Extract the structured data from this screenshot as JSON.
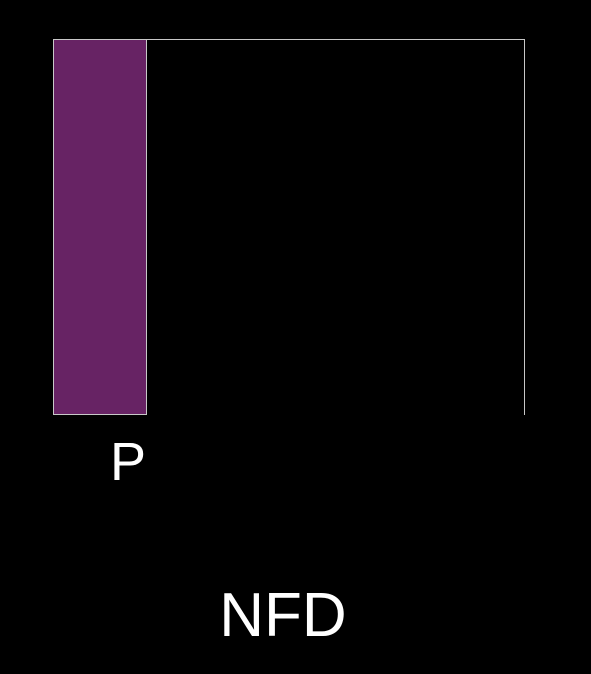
{
  "colors": {
    "background": "#000000",
    "bar_fill": "#672364",
    "frame_stroke": "#c8c8c8",
    "text": "#ffffff"
  },
  "panel": {
    "bar_label": "P",
    "footer_label": "NFD"
  }
}
